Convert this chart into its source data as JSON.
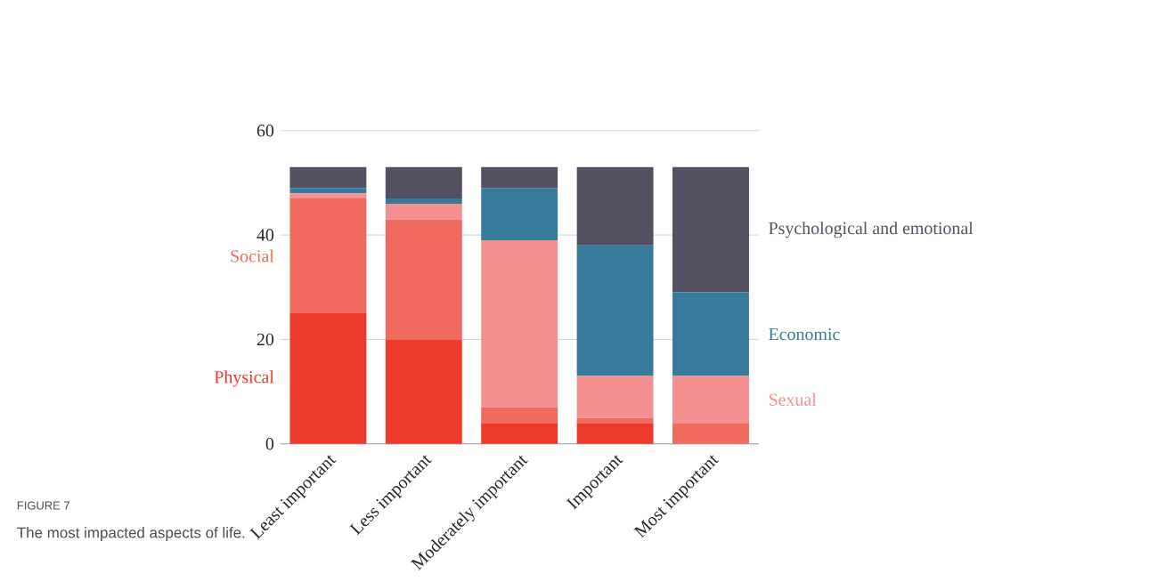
{
  "chart_data": {
    "type": "bar",
    "stacked": true,
    "categories": [
      "Least important",
      "Less important",
      "Moderately important",
      "Important",
      "Most important"
    ],
    "series": [
      {
        "name": "Physical",
        "color": "#ee3a2c",
        "values": [
          25,
          20,
          4,
          4,
          0
        ]
      },
      {
        "name": "Social",
        "color": "#f06a60",
        "values": [
          22,
          23,
          3,
          1,
          4
        ]
      },
      {
        "name": "Sexual",
        "color": "#f49090",
        "values": [
          1,
          3,
          32,
          8,
          9
        ]
      },
      {
        "name": "Economic",
        "color": "#387a9c",
        "values": [
          1,
          1,
          10,
          25,
          16
        ]
      },
      {
        "name": "Psychological and emotional",
        "color": "#545062",
        "values": [
          4,
          6,
          4,
          15,
          24
        ]
      }
    ],
    "ylim": [
      0,
      60
    ],
    "yticks": [
      0,
      20,
      40,
      60
    ],
    "grid": "y",
    "legend": false,
    "annotations": [
      "FIGURE 7",
      "The most impacted aspects of life."
    ]
  }
}
